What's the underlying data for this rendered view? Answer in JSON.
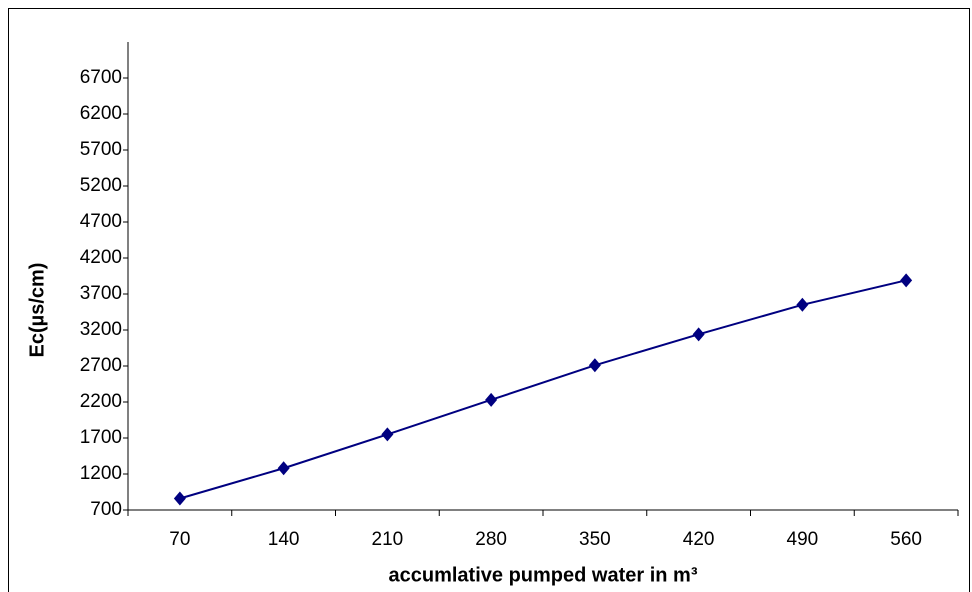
{
  "chart_data": {
    "type": "line",
    "x_label": "accumlative pumped water in m³",
    "y_label": "Ec(µs/cm)",
    "categories": [
      "70",
      "140",
      "210",
      "280",
      "350",
      "420",
      "490",
      "560"
    ],
    "series": [
      {
        "name": "Ec",
        "color": "#000080",
        "values": [
          860,
          1280,
          1750,
          2230,
          2710,
          3140,
          3550,
          3890
        ]
      }
    ],
    "ylim": [
      700,
      7200
    ],
    "yticks": [
      700,
      1200,
      1700,
      2200,
      2700,
      3200,
      3700,
      4200,
      4700,
      5200,
      5700,
      6200,
      6700
    ],
    "grid": false
  }
}
